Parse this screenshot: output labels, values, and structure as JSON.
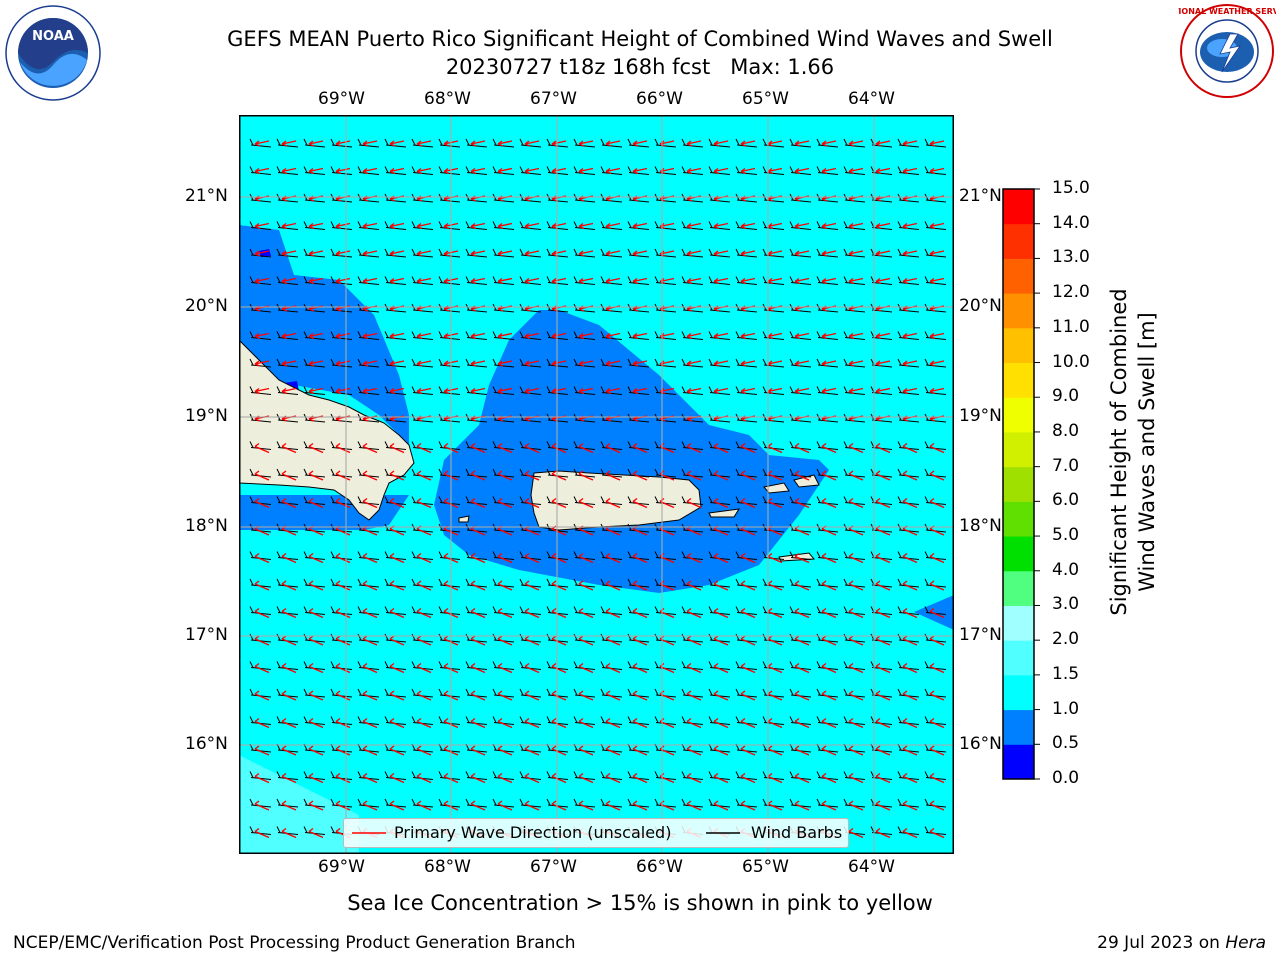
{
  "title": {
    "line1": "GEFS MEAN Puerto Rico Significant Height of Combined Wind Waves and Swell",
    "line2": "20230727 t18z 168h fcst   Max: 1.66"
  },
  "logos": {
    "noaa_text": "NOAA",
    "noaa_ring": "NATIONAL OCEANIC AND ATMOSPHERIC ADMINISTRATION · U.S. DEPARTMENT OF COMMERCE",
    "nws_ring": "NATIONAL WEATHER SERVICE"
  },
  "map": {
    "lon_labels": [
      "69°W",
      "68°W",
      "67°W",
      "66°W",
      "65°W",
      "64°W"
    ],
    "lat_labels": [
      "21°N",
      "20°N",
      "19°N",
      "18°N",
      "17°N",
      "16°N"
    ],
    "colors": {
      "ocean_main": "#00ffff",
      "ocean_mid": "#0080ff",
      "ocean_low": "#0000ff",
      "ocean_high": "#50ffff",
      "land": "#eeeedd",
      "grid": "#aaaaaa",
      "wave_arrow": "#ff0000",
      "wind_barb": "#000000"
    }
  },
  "legend": {
    "wave_label": "Primary Wave Direction (unscaled)",
    "barb_label": "Wind Barbs"
  },
  "colorbar": {
    "label_line1": "Significant Height of Combined",
    "label_line2": "Wind Waves and Swell [m]",
    "ticks": [
      "0.0",
      "0.5",
      "1.0",
      "1.5",
      "2.0",
      "3.0",
      "4.0",
      "5.0",
      "6.0",
      "7.0",
      "8.0",
      "9.0",
      "10.0",
      "11.0",
      "12.0",
      "13.0",
      "14.0",
      "15.0"
    ],
    "colors": [
      "#0000ff",
      "#0080ff",
      "#00ffff",
      "#50ffff",
      "#a0ffff",
      "#50ff80",
      "#00e000",
      "#60e000",
      "#a0e000",
      "#d0f000",
      "#f0ff00",
      "#ffe000",
      "#ffc000",
      "#ff9000",
      "#ff6000",
      "#ff3000",
      "#ff0000"
    ]
  },
  "note": "Sea Ice Concentration > 15% is shown in pink to yellow",
  "footer": {
    "left": "NCEP/EMC/Verification Post Processing Product Generation Branch",
    "right_date": "29 Jul 2023 on ",
    "right_host": "Hera"
  }
}
